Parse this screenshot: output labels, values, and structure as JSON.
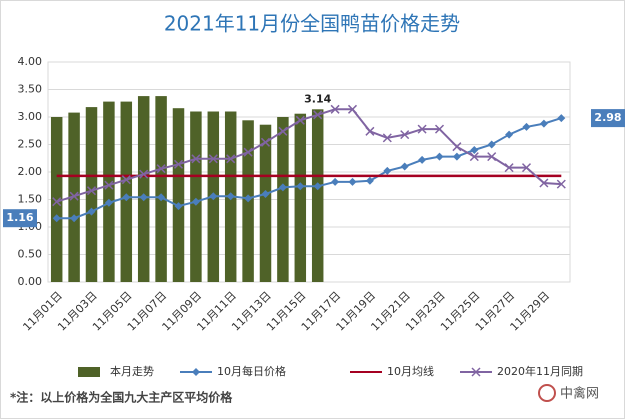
{
  "chart_data": {
    "type": "bar",
    "title": "2021年11月份全国鸭苗价格走势",
    "categories": [
      "11月01日",
      null,
      "11月03日",
      null,
      "11月05日",
      null,
      "11月07日",
      null,
      "11月09日",
      null,
      "11月11日",
      null,
      "11月13日",
      null,
      "11月15日",
      null,
      "11月17日",
      null,
      "11月19日",
      null,
      "11月21日",
      null,
      "11月23日",
      null,
      "11月25日",
      null,
      "11月27日",
      null,
      "11月29日",
      null
    ],
    "ylim": [
      0,
      4
    ],
    "yticks": [
      {
        "value": 0,
        "label": "0.00"
      },
      {
        "value": 0.5,
        "label": "0.50"
      },
      {
        "value": 1,
        "label": "1.00"
      },
      {
        "value": 1.5,
        "label": "1.50"
      },
      {
        "value": 2,
        "label": "2.00"
      },
      {
        "value": 2.5,
        "label": "2.50"
      },
      {
        "value": 3,
        "label": "3.00"
      },
      {
        "value": 3.5,
        "label": "3.50"
      },
      {
        "value": 4,
        "label": "4.00"
      }
    ],
    "grid": true,
    "legend": "bottom",
    "series": [
      {
        "name": "本月走势",
        "type": "bar",
        "color": "#4f6228",
        "values": [
          3.0,
          3.08,
          3.18,
          3.28,
          3.28,
          3.38,
          3.38,
          3.16,
          3.1,
          3.1,
          3.1,
          2.94,
          2.86,
          3.0,
          3.06,
          3.14,
          null,
          null,
          null,
          null,
          null,
          null,
          null,
          null,
          null,
          null,
          null,
          null,
          null,
          null
        ]
      },
      {
        "name": "10月每日价格",
        "type": "line",
        "marker": "diamond",
        "color": "#4a7ebb",
        "values": [
          1.16,
          1.16,
          1.28,
          1.44,
          1.54,
          1.54,
          1.54,
          1.38,
          1.46,
          1.56,
          1.56,
          1.52,
          1.6,
          1.72,
          1.74,
          1.74,
          1.82,
          1.82,
          1.84,
          2.02,
          2.1,
          2.22,
          2.28,
          2.28,
          2.4,
          2.5,
          2.68,
          2.82,
          2.88,
          2.98
        ]
      },
      {
        "name": "10月均线",
        "type": "line",
        "marker": "none",
        "color": "#a50021",
        "values": [
          1.93,
          1.93,
          1.93,
          1.93,
          1.93,
          1.93,
          1.93,
          1.93,
          1.93,
          1.93,
          1.93,
          1.93,
          1.93,
          1.93,
          1.93,
          1.93,
          1.93,
          1.93,
          1.93,
          1.93,
          1.93,
          1.93,
          1.93,
          1.93,
          1.93,
          1.93,
          1.93,
          1.93,
          1.93,
          1.93
        ]
      },
      {
        "name": "2020年11月同期",
        "type": "line",
        "marker": "x",
        "color": "#8064a2",
        "values": [
          1.46,
          1.56,
          1.66,
          1.76,
          1.86,
          1.96,
          2.06,
          2.14,
          2.24,
          2.24,
          2.24,
          2.36,
          2.54,
          2.74,
          2.94,
          3.04,
          3.14,
          3.14,
          2.74,
          2.62,
          2.68,
          2.78,
          2.78,
          2.46,
          2.28,
          2.28,
          2.08,
          2.08,
          1.8,
          1.78
        ]
      }
    ],
    "note": "*注：以上价格为全国九大主产区平均价格",
    "watermark": "中禽网"
  }
}
